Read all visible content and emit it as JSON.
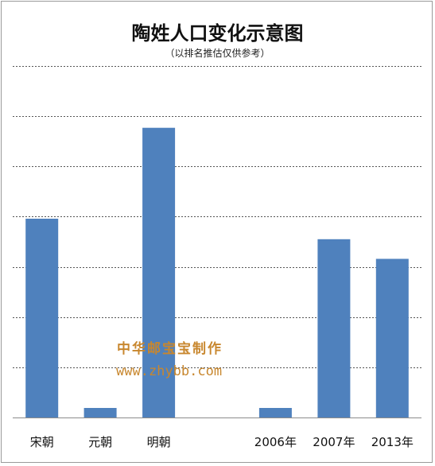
{
  "chart_data": {
    "type": "bar",
    "title": "陶姓人口变化示意图",
    "subtitle": "（以排名推估仅供参考）",
    "categories": [
      "宋朝",
      "元朝",
      "明朝",
      "",
      "2006年",
      "2007年",
      "2013年"
    ],
    "values": [
      3.96,
      0.19,
      5.77,
      null,
      0.19,
      3.55,
      3.16
    ],
    "ylim": [
      0,
      7
    ],
    "grid": true,
    "legend": "none",
    "colors": {
      "bar": "#4f81bd",
      "grid": "#555555",
      "axis": "#8c8c8c"
    }
  },
  "watermark": {
    "line1": "中华邮宝宝制作",
    "line2": "www.zhybb.com"
  }
}
